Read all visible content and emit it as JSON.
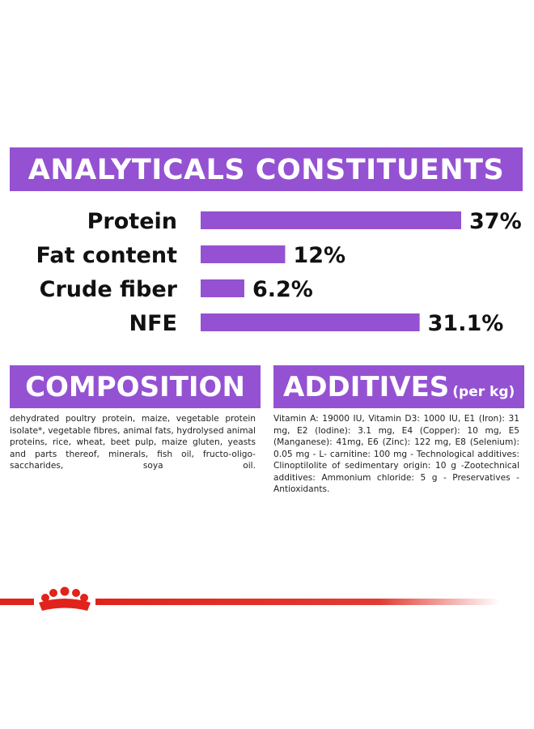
{
  "analytical": {
    "title": "ANALYTICALS CONSTITUENTS"
  },
  "chart_data": {
    "type": "bar",
    "orientation": "horizontal",
    "categories": [
      "Protein",
      "Fat content",
      "Crude fiber",
      "NFE"
    ],
    "values": [
      37,
      12,
      6.2,
      31.1
    ],
    "value_labels": [
      "37%",
      "12%",
      "6.2%",
      "31.1%"
    ],
    "title": "ANALYTICALS CONSTITUENTS",
    "xlabel": "",
    "ylabel": "",
    "xlim": [
      0,
      37
    ],
    "grid": false,
    "legend": "none",
    "bar_color": "#9452d2"
  },
  "composition": {
    "title": "COMPOSITION",
    "text": "dehydrated poultry protein, maize, vegetable protein isolate*, vegetable fibres, animal fats, hydrolysed animal proteins, rice, wheat, beet pulp, maize gluten, yeasts and parts thereof, minerals, fish oil, fructo-oligo-saccharides, soya oil."
  },
  "additives": {
    "title": "ADDITIVES",
    "subtitle": "(per kg)",
    "text": "Vitamin A: 19000 IU, Vitamin D3: 1000 IU, E1 (Iron): 31 mg, E2 (Iodine): 3.1 mg, E4 (Copper): 10 mg, E5 (Manganese): 41mg, E6 (Zinc): 122 mg, E8 (Selenium): 0.05 mg - L- carnitine: 100 mg - Technological additives: Clinoptilolite of sedimentary origin: 10 g -Zootechnical additives: Ammonium chloride: 5 g - Preservatives - Antioxidants."
  },
  "colors": {
    "accent": "#9452d2",
    "brand_red": "#e0241b"
  },
  "footer": {
    "logo_icon": "crown-icon"
  }
}
